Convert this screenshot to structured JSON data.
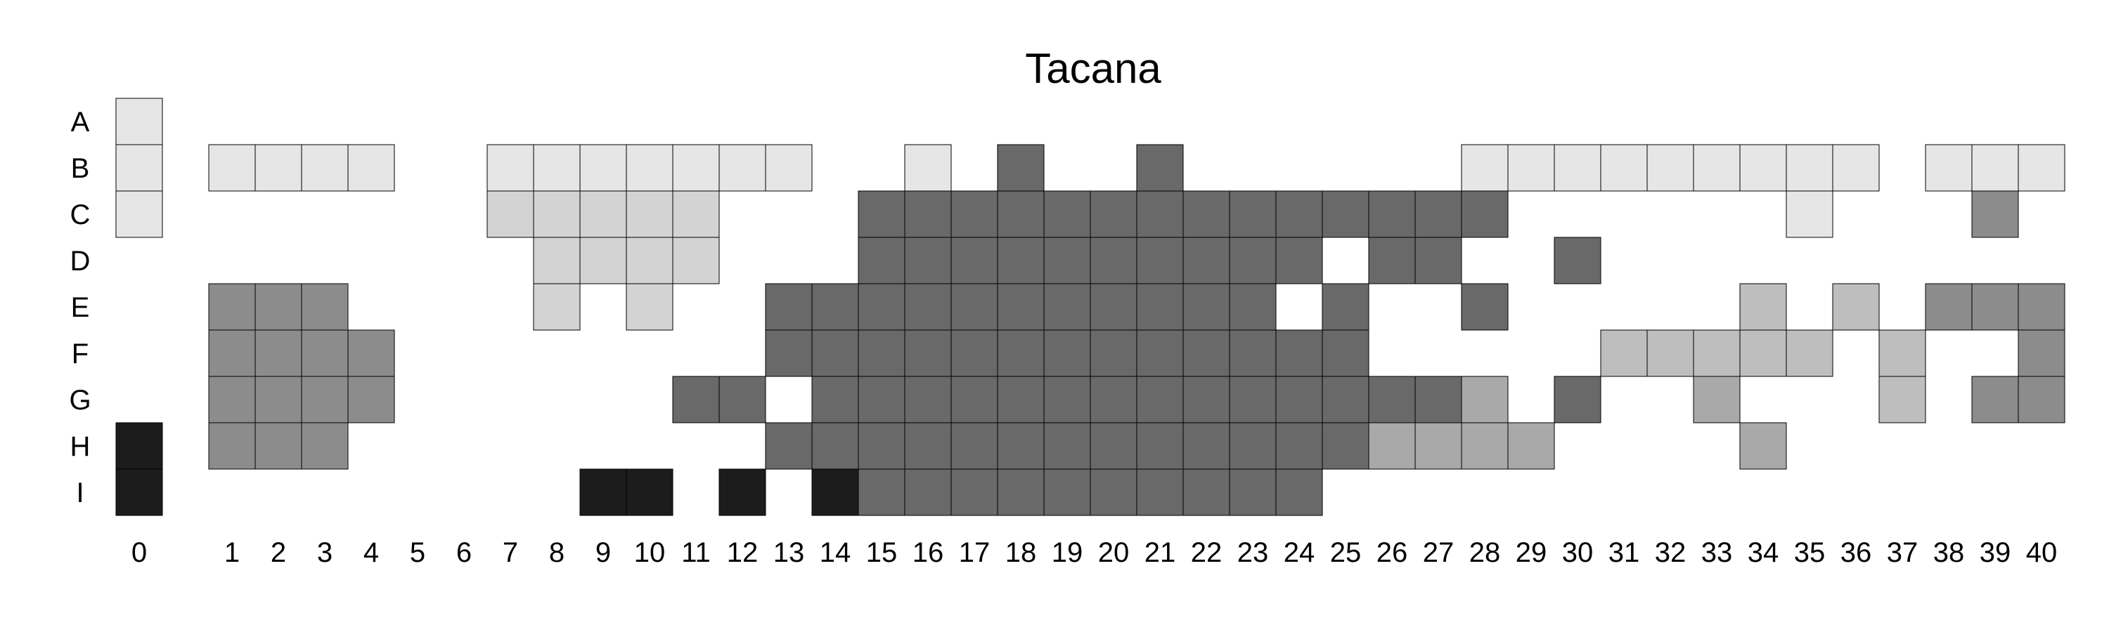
{
  "chart_data": {
    "type": "heatmap",
    "title": "Tacana",
    "xlabel": "",
    "ylabel": "",
    "grid": false,
    "rows": [
      "A",
      "B",
      "C",
      "D",
      "E",
      "F",
      "G",
      "H",
      "I"
    ],
    "columns": [
      "0",
      "1",
      "2",
      "3",
      "4",
      "5",
      "6",
      "7",
      "8",
      "9",
      "10",
      "11",
      "12",
      "13",
      "14",
      "15",
      "16",
      "17",
      "18",
      "19",
      "20",
      "21",
      "22",
      "23",
      "24",
      "25",
      "26",
      "27",
      "28",
      "29",
      "30",
      "31",
      "32",
      "33",
      "34",
      "35",
      "36",
      "37",
      "38",
      "39",
      "40"
    ],
    "colors": {
      "1": "#e6e6e6",
      "2": "#d3d3d3",
      "3": "#bebebe",
      "4": "#a9a9a9",
      "5": "#8c8c8c",
      "6": "#696969",
      "7": "#1c1c1c"
    },
    "grid_values": [
      "1........................................",
      "11111..1111111..1.6..6......111111111.111",
      "1......22222...66666666666666......1...5.",
      "........2222...6666666666.66..6..........",
      ".555....2.2..66666666666.6..6.....3.3.555",
      ".5555........6666666666666.....33333.3..55",
      ".5555......66.666666666666664.6..4...3.555",
      "7555.........66666666666664444....4......",
      "7........77.7.76666666666................"
    ]
  }
}
